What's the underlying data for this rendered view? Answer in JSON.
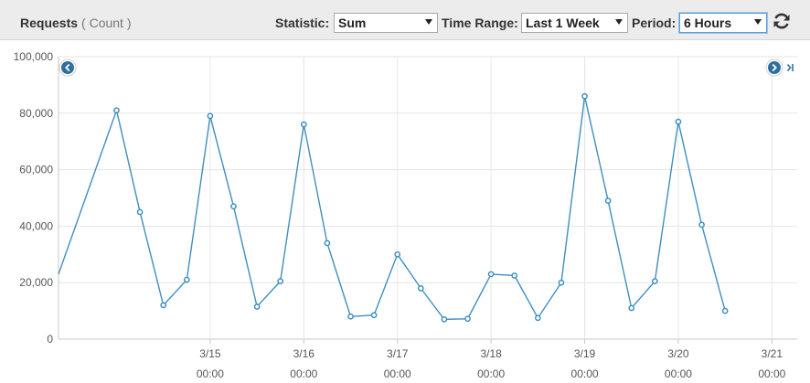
{
  "header": {
    "title": "Requests",
    "subtitle": "( Count )",
    "statistic_label": "Statistic:",
    "statistic_value": "Sum",
    "time_range_label": "Time Range:",
    "time_range_value": "Last 1 Week",
    "period_label": "Period:",
    "period_value": "6 Hours",
    "refresh_icon": "refresh-icon"
  },
  "navigation": {
    "prev_icon": "chevron-left-icon",
    "next_icon": "chevron-right-icon",
    "latest_icon": "skip-to-end-icon"
  },
  "colors": {
    "series": "#3f8fc0",
    "grid": "#e6e6e6",
    "axis_text": "#555555",
    "header_bg": "#ececec"
  },
  "chart_data": {
    "type": "line",
    "title": "Requests",
    "xlabel": "",
    "ylabel": "",
    "ylim": [
      0,
      100000
    ],
    "yticks": [
      0,
      20000,
      40000,
      60000,
      80000,
      100000
    ],
    "ytick_labels": [
      "0",
      "20,000",
      "40,000",
      "60,000",
      "80,000",
      "100,000"
    ],
    "xticks": [
      {
        "x": 1.0,
        "date": "3/15",
        "time": "00:00"
      },
      {
        "x": 2.0,
        "date": "3/16",
        "time": "00:00"
      },
      {
        "x": 3.0,
        "date": "3/17",
        "time": "00:00"
      },
      {
        "x": 4.0,
        "date": "3/18",
        "time": "00:00"
      },
      {
        "x": 5.0,
        "date": "3/19",
        "time": "00:00"
      },
      {
        "x": 6.0,
        "date": "3/20",
        "time": "00:00"
      },
      {
        "x": 7.0,
        "date": "3/21",
        "time": "00:00"
      }
    ],
    "xlim": [
      -0.62,
      7.27
    ],
    "grid": true,
    "series": [
      {
        "start_x": -0.25,
        "step": 0.25,
        "leading_value": 23000,
        "values": [
          81000,
          45000,
          12000,
          21000,
          79000,
          47000,
          11500,
          20500,
          76000,
          34000,
          8000,
          8500,
          30000,
          18000,
          7000,
          7200,
          23000,
          22500,
          7500,
          20000,
          86000,
          49000,
          11000,
          20500,
          77000,
          40500,
          10000
        ]
      }
    ]
  }
}
